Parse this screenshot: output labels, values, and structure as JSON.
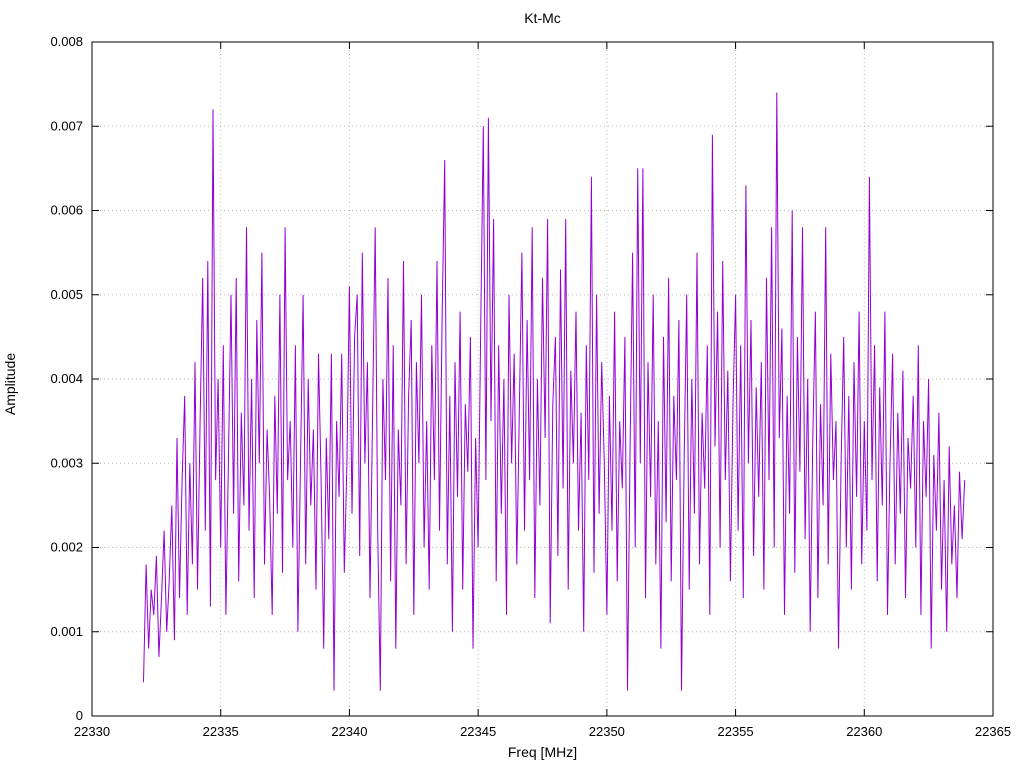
{
  "title": "Kt-Mc",
  "chart_data": {
    "type": "line",
    "title": "Kt-Mc",
    "xlabel": "Freq [MHz]",
    "ylabel": "Amplitude",
    "xlim": [
      22330,
      22365
    ],
    "ylim": [
      0,
      0.008
    ],
    "x_tick_values": [
      22330,
      22335,
      22340,
      22345,
      22350,
      22355,
      22360,
      22365
    ],
    "x_tick_labels": [
      "22330",
      "22335",
      "22340",
      "22345",
      "22350",
      "22355",
      "22360",
      "22365"
    ],
    "y_tick_values": [
      0,
      0.001,
      0.002,
      0.003,
      0.004,
      0.005,
      0.006,
      0.007,
      0.008
    ],
    "y_tick_labels": [
      "0",
      "0.001",
      "0.002",
      "0.003",
      "0.004",
      "0.005",
      "0.006",
      "0.007",
      "0.008"
    ],
    "grid": true,
    "grid_color": "#b8b8b8",
    "line_color": "#9400d3",
    "border_color": "#000000",
    "x_start": 22332.0,
    "x_step": 0.1,
    "value_scale": 0.0001,
    "values": [
      4,
      18,
      8,
      15,
      12,
      19,
      7,
      14,
      22,
      10,
      16,
      25,
      9,
      33,
      14,
      28,
      38,
      12,
      30,
      18,
      42,
      15,
      35,
      52,
      22,
      54,
      13,
      72,
      28,
      40,
      20,
      44,
      12,
      30,
      50,
      24,
      52,
      16,
      36,
      25,
      58,
      22,
      40,
      14,
      47,
      30,
      55,
      18,
      34,
      26,
      12,
      38,
      24,
      50,
      17,
      58,
      28,
      35,
      20,
      44,
      10,
      30,
      50,
      18,
      40,
      25,
      34,
      15,
      43,
      28,
      8,
      33,
      21,
      43,
      3,
      35,
      26,
      43,
      17,
      30,
      51,
      24,
      45,
      50,
      19,
      55,
      30,
      42,
      14,
      36,
      58,
      22,
      3,
      40,
      28,
      52,
      16,
      44,
      8,
      34,
      25,
      54,
      18,
      38,
      47,
      12,
      42,
      30,
      50,
      20,
      35,
      15,
      44,
      28,
      54,
      22,
      47,
      66,
      18,
      38,
      10,
      42,
      26,
      48,
      15,
      37,
      29,
      45,
      8,
      33,
      20,
      46,
      70,
      28,
      71,
      35,
      59,
      16,
      44,
      24,
      40,
      12,
      50,
      30,
      43,
      18,
      36,
      55,
      22,
      47,
      28,
      58,
      14,
      40,
      25,
      52,
      33,
      59,
      11,
      37,
      45,
      19,
      53,
      27,
      59,
      15,
      41,
      30,
      48,
      22,
      36,
      10,
      44,
      28,
      64,
      17,
      50,
      24,
      42,
      30,
      12,
      38,
      22,
      48,
      16,
      35,
      27,
      45,
      3,
      31,
      55,
      20,
      65,
      30,
      65,
      14,
      42,
      26,
      50,
      18,
      35,
      8,
      45,
      23,
      52,
      16,
      38,
      28,
      47,
      3,
      30,
      50,
      15,
      40,
      24,
      55,
      18,
      36,
      27,
      44,
      12,
      69,
      32,
      48,
      20,
      54,
      28,
      41,
      16,
      37,
      50,
      22,
      44,
      14,
      63,
      30,
      47,
      19,
      39,
      26,
      42,
      15,
      52,
      28,
      58,
      20,
      74,
      33,
      46,
      12,
      38,
      24,
      60,
      17,
      45,
      29,
      58,
      21,
      40,
      10,
      33,
      48,
      14,
      37,
      25,
      58,
      18,
      43,
      28,
      35,
      8,
      30,
      45,
      20,
      38,
      15,
      42,
      26,
      48,
      18,
      35,
      22,
      64,
      28,
      44,
      16,
      39,
      25,
      48,
      12,
      30,
      43,
      18,
      36,
      24,
      41,
      14,
      33,
      27,
      38,
      20,
      44,
      12,
      35,
      26,
      40,
      8,
      31,
      22,
      36,
      15,
      28,
      10,
      32,
      18,
      25,
      14,
      29,
      21,
      28
    ]
  }
}
